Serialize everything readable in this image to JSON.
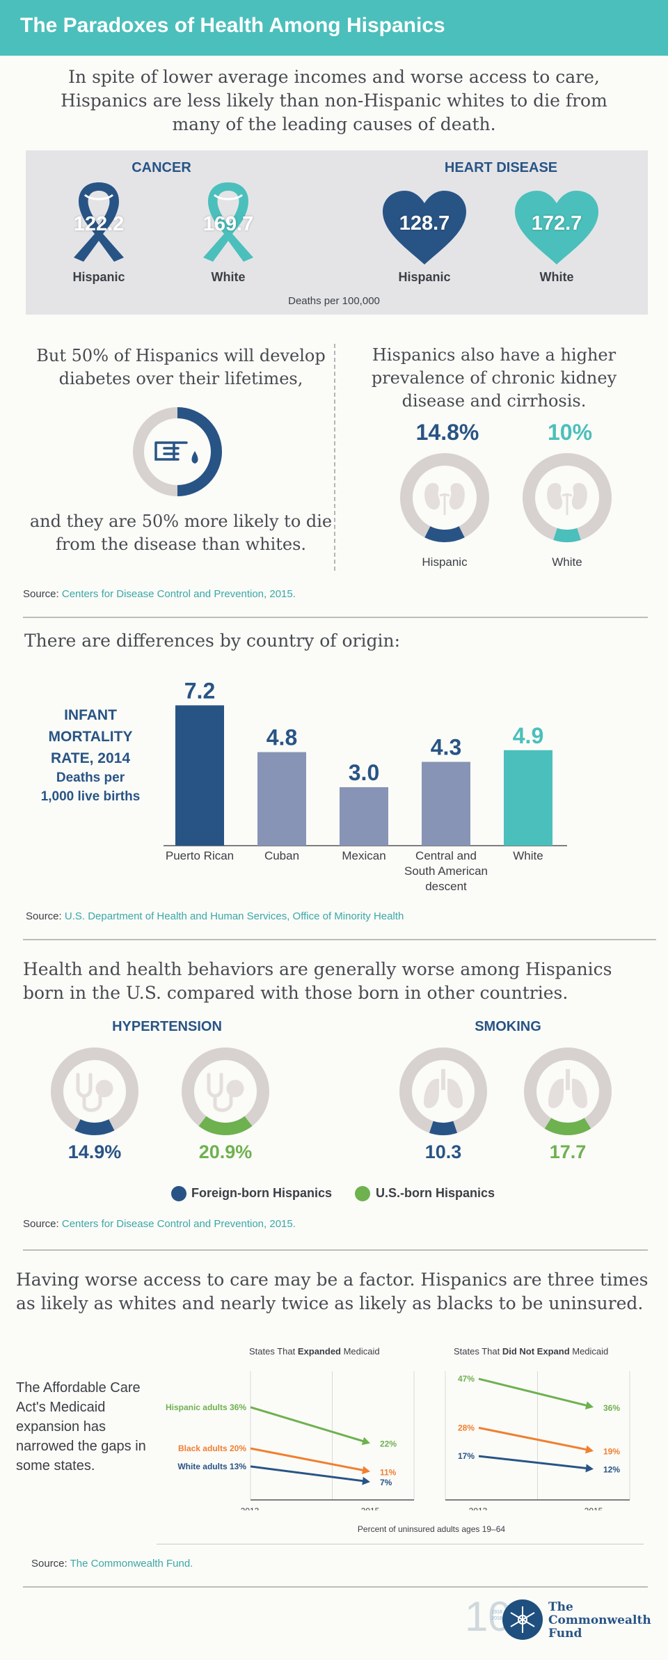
{
  "banner": {
    "title": "The Paradoxes of Health Among Hispanics"
  },
  "intro": "In spite of lower average incomes and worse access to care, Hispanics are less likely than non-Hispanic whites to die from many of the leading causes of death.",
  "mortality": {
    "cancer": {
      "title": "CANCER",
      "hispanic": "122.2",
      "white": "169.7"
    },
    "heart": {
      "title": "HEART DISEASE",
      "hispanic": "128.7",
      "white": "172.7"
    },
    "label_hispanic": "Hispanic",
    "label_white": "White",
    "unit": "Deaths per 100,000"
  },
  "diabetes": {
    "top": "But 50% of Hispanics will develop diabetes over their lifetimes,",
    "bottom": "and they are 50% more likely to die from the disease than whites.",
    "share": 0.5
  },
  "kidney": {
    "text": "Hispanics also have a higher prevalence of chronic kidney disease and cirrhosis.",
    "hispanic": "14.8%",
    "white": "10%",
    "hispanic_value": 14.8,
    "white_value": 10,
    "label_hispanic": "Hispanic",
    "label_white": "White"
  },
  "source1": {
    "label": "Source: ",
    "link": "Centers for Disease Control and Prevention, 2015."
  },
  "origin": {
    "title": "There are differences by country of origin:"
  },
  "infant": {
    "line1": "INFANT",
    "line2": "MORTALITY",
    "line3": "RATE, 2014",
    "line4": "Deaths per",
    "line5": "1,000 live births"
  },
  "source2": {
    "label": "Source: ",
    "link": "U.S. Department of Health and Human Services, Office of Minority Health"
  },
  "born": {
    "title": "Health and health behaviors are generally worse among Hispanics born in the U.S. compared with those born in other countries."
  },
  "hypertension": {
    "title": "HYPERTENSION",
    "foreign": "14.9%",
    "us": "20.9%",
    "foreign_value": 14.9,
    "us_value": 20.9
  },
  "smoking": {
    "title": "SMOKING",
    "foreign": "10.3",
    "us": "17.7",
    "foreign_value": 10.3,
    "us_value": 17.7
  },
  "legend": {
    "foreign": "Foreign-born Hispanics",
    "us": "U.S.-born Hispanics"
  },
  "source3": {
    "label": "Source: ",
    "link": "Centers for Disease Control and Prevention, 2015."
  },
  "access": {
    "title": "Having worse access to care may be a factor. Hispanics are three times as likely as whites and nearly twice as likely as blacks to be uninsured."
  },
  "aca_text": "The Affordable Care Act's Medicaid expansion has narrowed the gaps in some states.",
  "expanded_title": {
    "a": "States That ",
    "b": "Expanded",
    "c": " Medicaid"
  },
  "notexpanded_title": {
    "a": "States That ",
    "b": "Did Not Expand",
    "c": " Medicaid"
  },
  "caption": "Percent of uninsured adults ages 19–64",
  "source4": {
    "label": "Source: ",
    "link": "The Commonwealth Fund."
  },
  "logo": {
    "line1": "The",
    "line2": "Commonwealth",
    "line3": "Fund",
    "years1": "1918",
    "years2": "2018",
    "num": "100"
  },
  "colors": {
    "navy": "#285485",
    "teal": "#4bbfbb",
    "slate": "#8794b5",
    "green": "#6eb14f",
    "orange": "#f07f2f",
    "ring": "#d7d2d0"
  },
  "chart_data": [
    {
      "type": "bar",
      "title": "INFANT MORTALITY RATE, 2014",
      "ylabel": "Deaths per 1,000 live births",
      "categories": [
        "Puerto Rican",
        "Cuban",
        "Mexican",
        "Central and South American descent",
        "White"
      ],
      "values": [
        7.2,
        4.8,
        3.0,
        4.3,
        4.9
      ],
      "value_labels": [
        "7.2",
        "4.8",
        "3.0",
        "4.3",
        "4.9"
      ],
      "colors": [
        "#285485",
        "#8794b5",
        "#8794b5",
        "#8794b5",
        "#4bbfbb"
      ]
    },
    {
      "type": "line",
      "title": "States That Expanded Medicaid",
      "x": [
        "2013",
        "2015"
      ],
      "xlabel": "Percent of uninsured adults ages 19–64",
      "series": [
        {
          "name": "Hispanic adults",
          "values": [
            36,
            22
          ],
          "labels": [
            "36%",
            "22%"
          ],
          "color": "#6eb14f"
        },
        {
          "name": "Black adults",
          "values": [
            20,
            11
          ],
          "labels": [
            "20%",
            "11%"
          ],
          "color": "#f07f2f"
        },
        {
          "name": "White adults",
          "values": [
            13,
            7
          ],
          "labels": [
            "13%",
            "7%"
          ],
          "color": "#285485"
        }
      ]
    },
    {
      "type": "line",
      "title": "States That Did Not Expand Medicaid",
      "x": [
        "2013",
        "2015"
      ],
      "series": [
        {
          "name": "Hispanic adults",
          "values": [
            47,
            36
          ],
          "labels": [
            "47%",
            "36%"
          ],
          "color": "#6eb14f"
        },
        {
          "name": "Black adults",
          "values": [
            28,
            19
          ],
          "labels": [
            "28%",
            "19%"
          ],
          "color": "#f07f2f"
        },
        {
          "name": "White adults",
          "values": [
            17,
            12
          ],
          "labels": [
            "17%",
            "12%"
          ],
          "color": "#285485"
        }
      ]
    }
  ]
}
